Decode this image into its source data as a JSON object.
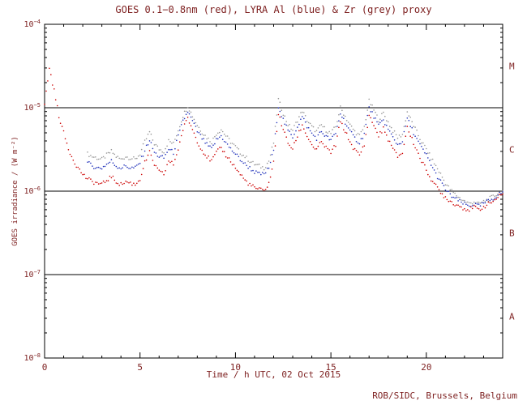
{
  "page": {
    "credit": "ROB/SIDC, Brussels, Belgium"
  },
  "colors": {
    "text": "#7d1f1f",
    "axis": "#000000",
    "background": "#ffffff",
    "red": "#cc0000",
    "blue": "#2233bb",
    "grey": "#979797"
  },
  "chart_data": {
    "type": "scatter",
    "title": "GOES 0.1−0.8nm (red), LYRA Al (blue) & Zr (grey) proxy",
    "xlabel": "Time / h UTC, 02 Oct 2015",
    "ylabel": "GOES irradiance / (W m⁻²)",
    "x_range": [
      0,
      24
    ],
    "y_log_range": [
      -8,
      -4
    ],
    "x_major_ticks": [
      0,
      5,
      10,
      15,
      20
    ],
    "x_minor_step": 1,
    "y_decade_ticks": [
      -4,
      -5,
      -6,
      -7,
      -8
    ],
    "threshold_lines": [
      1e-05,
      1e-06,
      1e-07
    ],
    "flare_classes": [
      {
        "label": "M",
        "log_mid": -4.5
      },
      {
        "label": "C",
        "log_mid": -5.5
      },
      {
        "label": "B",
        "log_mid": -6.5
      },
      {
        "label": "A",
        "log_mid": -7.5
      }
    ],
    "grid": false,
    "legend_position": "in-title",
    "series": [
      {
        "name": "GOES 0.1-0.8nm",
        "color": "#cc0000",
        "x_start": 0,
        "x_step": 0.25,
        "values": [
          1.1e-05,
          3e-05,
          1.6e-05,
          8e-06,
          5e-06,
          3.2e-06,
          2.4e-06,
          1.9e-06,
          1.6e-06,
          1.4e-06,
          1.3e-06,
          1.25e-06,
          1.2e-06,
          1.35e-06,
          1.5e-06,
          1.3e-06,
          1.2e-06,
          1.3e-06,
          1.25e-06,
          1.2e-06,
          1.4e-06,
          2.2e-06,
          2.9e-06,
          2.1e-06,
          1.7e-06,
          1.6e-06,
          2.3e-06,
          2.1e-06,
          3.2e-06,
          5.5e-06,
          7.5e-06,
          5.5e-06,
          4e-06,
          3.1e-06,
          2.6e-06,
          2.3e-06,
          2.9e-06,
          3.3e-06,
          2.7e-06,
          2.3e-06,
          1.9e-06,
          1.6e-06,
          1.35e-06,
          1.2e-06,
          1.1e-06,
          1.05e-06,
          1e-06,
          1.25e-06,
          2.2e-06,
          8.5e-06,
          5.5e-06,
          3.8e-06,
          3.2e-06,
          4.6e-06,
          6.2e-06,
          4.6e-06,
          3.6e-06,
          3.1e-06,
          3.9e-06,
          3.3e-06,
          2.9e-06,
          3.6e-06,
          6.8e-06,
          5.2e-06,
          3.9e-06,
          3.1e-06,
          2.7e-06,
          3.6e-06,
          8e-06,
          6.2e-06,
          4.6e-06,
          5.6e-06,
          4.2e-06,
          3.2e-06,
          2.6e-06,
          2.9e-06,
          5.8e-06,
          4.2e-06,
          3.1e-06,
          2.3e-06,
          1.8e-06,
          1.4e-06,
          1.15e-06,
          9.5e-07,
          8.5e-07,
          7.6e-07,
          7e-07,
          6.6e-07,
          6.2e-07,
          6e-07,
          6.4e-07,
          6e-07,
          6.5e-07,
          7e-07,
          7.6e-07,
          8.4e-07,
          9.2e-07
        ]
      },
      {
        "name": "LYRA Al proxy",
        "color": "#2233bb",
        "x_start": 2.25,
        "x_step": 0.25,
        "values": [
          2.2e-06,
          2e-06,
          1.9e-06,
          1.9e-06,
          2.1e-06,
          2.3e-06,
          2e-06,
          1.9e-06,
          2e-06,
          1.9e-06,
          1.9e-06,
          2.2e-06,
          3.1e-06,
          4.1e-06,
          2.9e-06,
          2.6e-06,
          2.5e-06,
          3.2e-06,
          2.9e-06,
          4.5e-06,
          6.9e-06,
          9e-06,
          6.9e-06,
          5.2e-06,
          4.3e-06,
          3.6e-06,
          3.2e-06,
          4.1e-06,
          4.6e-06,
          3.8e-06,
          3.2e-06,
          2.8e-06,
          2.4e-06,
          2.1e-06,
          1.9e-06,
          1.7e-06,
          1.6e-06,
          1.6e-06,
          1.9e-06,
          3.1e-06,
          1.05e-05,
          7.2e-06,
          5.3e-06,
          4.5e-06,
          6e-06,
          7.8e-06,
          6e-06,
          4.9e-06,
          4.3e-06,
          5.2e-06,
          4.5e-06,
          4.1e-06,
          4.9e-06,
          8.5e-06,
          6.7e-06,
          5.2e-06,
          4.3e-06,
          3.8e-06,
          4.9e-06,
          1e-05,
          7.9e-06,
          6e-06,
          7.2e-06,
          5.5e-06,
          4.4e-06,
          3.6e-06,
          4e-06,
          7.4e-06,
          5.5e-06,
          4.2e-06,
          3.3e-06,
          2.7e-06,
          2.1e-06,
          1.6e-06,
          1.3e-06,
          1.05e-06,
          9e-07,
          8.2e-07,
          7.5e-07,
          7e-07,
          6.6e-07,
          7e-07,
          6.6e-07,
          7.1e-07,
          7.6e-07,
          8.2e-07,
          9e-07,
          9.8e-07
        ]
      },
      {
        "name": "LYRA Zr proxy",
        "color": "#979797",
        "x_start": 2.25,
        "x_step": 0.25,
        "values": [
          2.8e-06,
          2.6e-06,
          2.5e-06,
          2.4e-06,
          2.7e-06,
          3e-06,
          2.6e-06,
          2.4e-06,
          2.6e-06,
          2.5e-06,
          2.4e-06,
          2.8e-06,
          3.9e-06,
          5.1e-06,
          3.7e-06,
          3.2e-06,
          3e-06,
          4e-06,
          3.7e-06,
          5.4e-06,
          8e-06,
          1.05e-05,
          8e-06,
          6.2e-06,
          5.1e-06,
          4.4e-06,
          3.9e-06,
          4.9e-06,
          5.5e-06,
          4.6e-06,
          3.9e-06,
          3.4e-06,
          2.9e-06,
          2.6e-06,
          2.3e-06,
          2.1e-06,
          2e-06,
          1.9e-06,
          2.3e-06,
          3.8e-06,
          1.25e-05,
          8.6e-06,
          6.3e-06,
          5.4e-06,
          7.1e-06,
          9.2e-06,
          7.1e-06,
          5.9e-06,
          5.2e-06,
          6.2e-06,
          5.4e-06,
          4.9e-06,
          5.9e-06,
          1e-05,
          7.9e-06,
          6.2e-06,
          5.2e-06,
          4.6e-06,
          5.9e-06,
          1.2e-05,
          9.4e-06,
          7.2e-06,
          8.6e-06,
          6.7e-06,
          5.3e-06,
          4.4e-06,
          4.8e-06,
          8.9e-06,
          6.7e-06,
          5.1e-06,
          3.9e-06,
          3.2e-06,
          2.5e-06,
          2e-06,
          1.6e-06,
          1.25e-06,
          1.05e-06,
          9.2e-07,
          8.3e-07,
          7.6e-07,
          7.1e-07,
          7.5e-07,
          7e-07,
          7.5e-07,
          8e-07,
          8.6e-07,
          9.4e-07,
          1e-06
        ]
      }
    ]
  }
}
